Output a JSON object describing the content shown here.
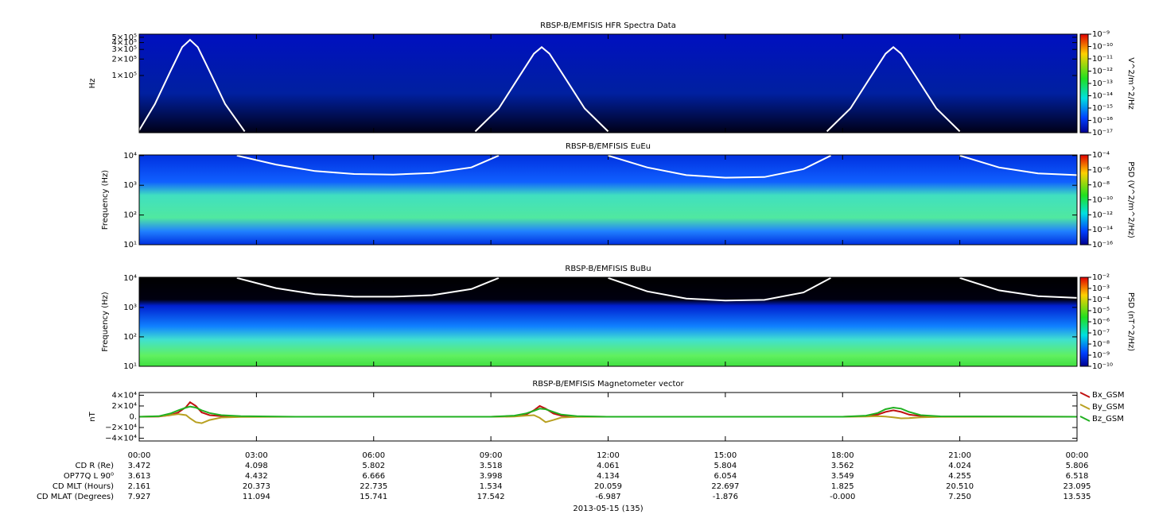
{
  "chart_data": [
    {
      "type": "spectrogram",
      "title": "RBSP-B/EMFISIS  HFR Spectra Data",
      "ylabel": "Hz",
      "ylog": true,
      "ylim": [
        9000,
        570000
      ],
      "yticks": [
        {
          "value": 500000,
          "label": "5×10⁵"
        },
        {
          "value": 400000,
          "label": "4×10⁵"
        },
        {
          "value": 300000,
          "label": "3×10⁵"
        },
        {
          "value": 200000,
          "label": "2×10⁵"
        },
        {
          "value": 100000,
          "label": "1×10⁵"
        }
      ],
      "xlim": [
        0,
        24
      ],
      "xticks": [
        0,
        3,
        6,
        9,
        12,
        15,
        18,
        21,
        24
      ],
      "colorbar_label": "V^2/m^2/Hz",
      "clim": [
        1e-17,
        1e-09
      ],
      "cticks": [
        {
          "value": 1e-09,
          "label": "10⁻⁹"
        },
        {
          "value": 1e-10,
          "label": "10⁻¹⁰"
        },
        {
          "value": 1e-11,
          "label": "10⁻¹¹"
        },
        {
          "value": 1e-12,
          "label": "10⁻¹²"
        },
        {
          "value": 1e-13,
          "label": "10⁻¹³"
        },
        {
          "value": 1e-14,
          "label": "10⁻¹⁴"
        },
        {
          "value": 1e-15,
          "label": "10⁻¹⁵"
        },
        {
          "value": 1e-16,
          "label": "10⁻¹⁶"
        },
        {
          "value": 1e-17,
          "label": "10⁻¹⁷"
        }
      ],
      "x": [
        0,
        0.4,
        0.8,
        1.1,
        1.3,
        1.5,
        1.8,
        2.2,
        2.7,
        5,
        8.6,
        9.2,
        9.7,
        10.1,
        10.3,
        10.5,
        10.9,
        11.4,
        12.0,
        15,
        17.6,
        18.2,
        18.7,
        19.1,
        19.3,
        19.5,
        19.9,
        20.4,
        21.0
      ],
      "series": [
        {
          "color": "#ffffff",
          "values": [
            10000,
            30000,
            120000,
            330000,
            450000,
            330000,
            120000,
            30000,
            9500,
            null,
            9500,
            25000,
            90000,
            250000,
            330000,
            250000,
            90000,
            25000,
            9500,
            null,
            9500,
            25000,
            90000,
            250000,
            330000,
            250000,
            90000,
            25000,
            9500
          ]
        }
      ]
    },
    {
      "type": "spectrogram",
      "title": "RBSP-B/EMFISIS  EuEu",
      "ylabel": "Frequency (Hz)",
      "ylog": true,
      "ylim": [
        10,
        10500
      ],
      "yticks": [
        {
          "value": 10000,
          "label": "10⁴"
        },
        {
          "value": 1000,
          "label": "10³"
        },
        {
          "value": 100,
          "label": "10²"
        },
        {
          "value": 10,
          "label": "10¹"
        }
      ],
      "xlim": [
        0,
        24
      ],
      "xticks": [
        0,
        3,
        6,
        9,
        12,
        15,
        18,
        21,
        24
      ],
      "colorbar_label": "PSD (V^2/m^2/Hz)",
      "clim": [
        1e-16,
        0.0001
      ],
      "cticks": [
        {
          "value": 0.0001,
          "label": "10⁻⁴"
        },
        {
          "value": 1e-06,
          "label": "10⁻⁶"
        },
        {
          "value": 1e-08,
          "label": "10⁻⁸"
        },
        {
          "value": 1e-10,
          "label": "10⁻¹⁰"
        },
        {
          "value": 1e-12,
          "label": "10⁻¹²"
        },
        {
          "value": 1e-14,
          "label": "10⁻¹⁴"
        },
        {
          "value": 1e-16,
          "label": "10⁻¹⁶"
        }
      ],
      "x": [
        2.5,
        3.5,
        4.5,
        5.5,
        6.5,
        7.5,
        8.5,
        9.2,
        10.5,
        12.0,
        13,
        14,
        15,
        16,
        17,
        17.7,
        19,
        21.0,
        22,
        23,
        24
      ],
      "series": [
        {
          "color": "#ffffff",
          "values": [
            10000,
            5000,
            3000,
            2400,
            2300,
            2600,
            4000,
            10000,
            null,
            10000,
            4000,
            2200,
            1800,
            1900,
            3500,
            10000,
            null,
            10000,
            4000,
            2500,
            2200
          ]
        }
      ]
    },
    {
      "type": "spectrogram",
      "title": "RBSP-B/EMFISIS  BuBu",
      "ylabel": "Frequency (Hz)",
      "ylog": true,
      "ylim": [
        10,
        10500
      ],
      "yticks": [
        {
          "value": 10000,
          "label": "10⁴"
        },
        {
          "value": 1000,
          "label": "10³"
        },
        {
          "value": 100,
          "label": "10²"
        },
        {
          "value": 10,
          "label": "10¹"
        }
      ],
      "xlim": [
        0,
        24
      ],
      "xticks": [
        0,
        3,
        6,
        9,
        12,
        15,
        18,
        21,
        24
      ],
      "colorbar_label": "PSD (nT^2/Hz)",
      "clim": [
        1e-10,
        0.01
      ],
      "cticks": [
        {
          "value": 0.01,
          "label": "10⁻²"
        },
        {
          "value": 0.001,
          "label": "10⁻³"
        },
        {
          "value": 0.0001,
          "label": "10⁻⁴"
        },
        {
          "value": 1e-05,
          "label": "10⁻⁵"
        },
        {
          "value": 1e-06,
          "label": "10⁻⁶"
        },
        {
          "value": 1e-07,
          "label": "10⁻⁷"
        },
        {
          "value": 1e-08,
          "label": "10⁻⁸"
        },
        {
          "value": 1e-09,
          "label": "10⁻⁹"
        },
        {
          "value": 1e-10,
          "label": "10⁻¹⁰"
        }
      ],
      "x": [
        2.5,
        3.5,
        4.5,
        5.5,
        6.5,
        7.5,
        8.5,
        9.2,
        10.5,
        12.0,
        13,
        14,
        15,
        16,
        17,
        17.7,
        19,
        21.0,
        22,
        23,
        24
      ],
      "series": [
        {
          "color": "#ffffff",
          "values": [
            10000,
            4500,
            2800,
            2300,
            2300,
            2600,
            4200,
            10000,
            null,
            10000,
            3500,
            2000,
            1700,
            1800,
            3200,
            10000,
            null,
            10000,
            3800,
            2400,
            2100
          ]
        }
      ]
    },
    {
      "type": "line",
      "title": "RBSP-B/EMFISIS  Magnetometer vector",
      "ylabel": "nT",
      "ylog": false,
      "ylim": [
        -45000,
        45000
      ],
      "yticks": [
        {
          "value": 40000,
          "label": "4×10⁴"
        },
        {
          "value": 20000,
          "label": "2×10⁴"
        },
        {
          "value": 0,
          "label": "0."
        },
        {
          "value": -20000,
          "label": "−2×10⁴"
        },
        {
          "value": -40000,
          "label": "−4×10⁴"
        }
      ],
      "xlim": [
        0,
        24
      ],
      "xticks": [
        {
          "value": 0,
          "label": "00:00"
        },
        {
          "value": 3,
          "label": "03:00"
        },
        {
          "value": 6,
          "label": "06:00"
        },
        {
          "value": 9,
          "label": "09:00"
        },
        {
          "value": 12,
          "label": "12:00"
        },
        {
          "value": 15,
          "label": "15:00"
        },
        {
          "value": 18,
          "label": "18:00"
        },
        {
          "value": 21,
          "label": "21:00"
        },
        {
          "value": 24,
          "label": "00:00"
        }
      ],
      "x": [
        0,
        0.5,
        0.8,
        1.0,
        1.2,
        1.3,
        1.45,
        1.6,
        1.8,
        2.1,
        2.6,
        4,
        9,
        9.6,
        9.9,
        10.1,
        10.25,
        10.4,
        10.6,
        10.8,
        11.2,
        12,
        18,
        18.6,
        18.9,
        19.1,
        19.3,
        19.5,
        19.7,
        20.0,
        20.5,
        24
      ],
      "series": [
        {
          "name": "Bx_GSM",
          "color": "#c01010",
          "values": [
            0,
            500,
            3000,
            8000,
            18000,
            27000,
            20000,
            8000,
            3000,
            1000,
            200,
            0,
            0,
            800,
            4000,
            12000,
            20000,
            15000,
            6000,
            2000,
            300,
            0,
            0,
            1000,
            4000,
            9000,
            12000,
            9000,
            4000,
            1500,
            300,
            0
          ]
        },
        {
          "name": "By_GSM",
          "color": "#b8a020",
          "values": [
            0,
            800,
            3000,
            5000,
            3000,
            -3000,
            -10000,
            -12000,
            -6000,
            -1500,
            -300,
            0,
            0,
            500,
            2000,
            3000,
            -2000,
            -10000,
            -6000,
            -1500,
            -200,
            0,
            0,
            300,
            1000,
            500,
            -1000,
            -3000,
            -2500,
            -1000,
            -200,
            0
          ]
        },
        {
          "name": "Bz_GSM",
          "color": "#20b020",
          "values": [
            0,
            1000,
            6000,
            12000,
            17000,
            19000,
            17000,
            12000,
            7000,
            3000,
            1000,
            0,
            0,
            2000,
            6000,
            11000,
            15000,
            14000,
            9000,
            4000,
            1000,
            0,
            0,
            2000,
            7000,
            14000,
            17000,
            15000,
            9000,
            3000,
            800,
            0
          ]
        }
      ]
    }
  ],
  "footer": {
    "rows": [
      {
        "label": "CD R (Re)",
        "values": [
          "3.472",
          "4.098",
          "5.802",
          "3.518",
          "4.061",
          "5.804",
          "3.562",
          "4.024",
          "5.806"
        ]
      },
      {
        "label": "OP77Q L 90⁰",
        "values": [
          "3.613",
          "4.432",
          "6.666",
          "3.998",
          "4.134",
          "6.054",
          "3.549",
          "4.255",
          "6.518"
        ]
      },
      {
        "label": "CD MLT (Hours)",
        "values": [
          "2.161",
          "20.373",
          "22.735",
          "1.534",
          "20.059",
          "22.697",
          "1.825",
          "20.510",
          "23.095"
        ]
      },
      {
        "label": "CD MLAT (Degrees)",
        "values": [
          "7.927",
          "11.094",
          "15.741",
          "17.542",
          "-6.987",
          "-1.876",
          "-0.000",
          "7.250",
          "13.535"
        ]
      }
    ],
    "date": "2013-05-15 (135)"
  }
}
